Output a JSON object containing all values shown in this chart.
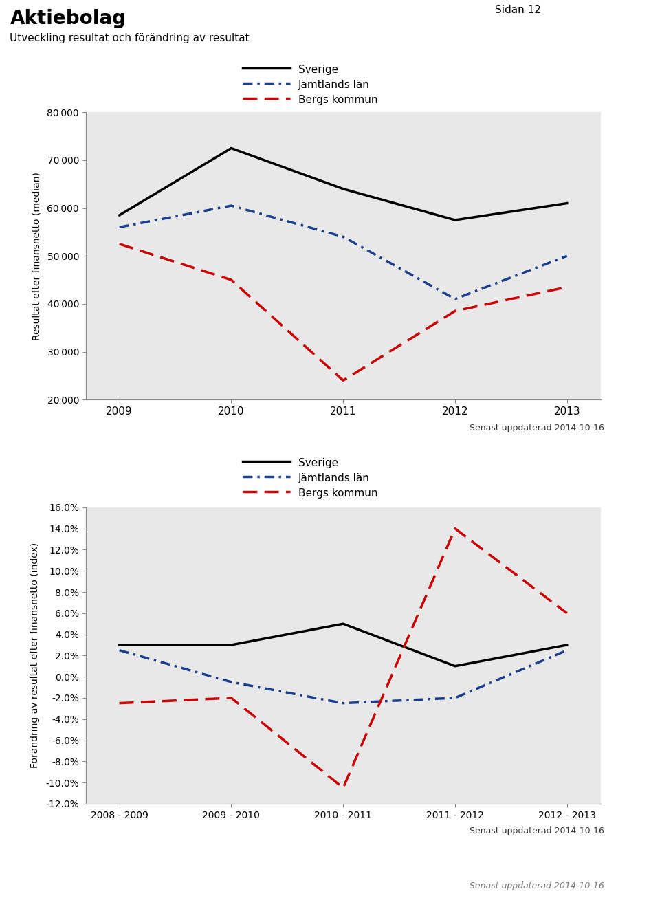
{
  "title": "Aktiebolag",
  "subtitle": "Utveckling resultat och förändring av resultat",
  "page": "Sidan 12",
  "updated": "Senast uppdaterad 2014-10-16",
  "chart1": {
    "ylabel": "Resultat efter finansnetto (median)",
    "years": [
      2009,
      2010,
      2011,
      2012,
      2013
    ],
    "sverige": [
      58500,
      72500,
      64000,
      57500,
      61000
    ],
    "jamtland": [
      56000,
      60500,
      54000,
      41000,
      50000
    ],
    "bergs": [
      52500,
      45000,
      24000,
      38500,
      43500
    ],
    "ylim": [
      20000,
      80000
    ],
    "yticks": [
      20000,
      30000,
      40000,
      50000,
      60000,
      70000,
      80000
    ]
  },
  "chart2": {
    "ylabel": "Förändring av resultat efter finansnetto (index)",
    "periods": [
      "2008 - 2009",
      "2009 - 2010",
      "2010 - 2011",
      "2011 - 2012",
      "2012 - 2013"
    ],
    "sverige": [
      0.03,
      0.03,
      0.05,
      0.01,
      0.03
    ],
    "jamtland": [
      0.025,
      -0.005,
      -0.025,
      -0.02,
      0.025
    ],
    "bergs": [
      -0.025,
      -0.02,
      -0.105,
      0.14,
      0.06
    ],
    "ylim": [
      -0.12,
      0.16
    ],
    "yticks": [
      -0.12,
      -0.1,
      -0.08,
      -0.06,
      -0.04,
      -0.02,
      0.0,
      0.02,
      0.04,
      0.06,
      0.08,
      0.1,
      0.12,
      0.14,
      0.16
    ]
  },
  "colors": {
    "sverige": "#000000",
    "jamtland": "#1a3f8f",
    "bergs": "#cc0000"
  },
  "legend_labels": [
    "Sverige",
    "Jämtlands län",
    "Bergs kommun"
  ],
  "bg_color": "#e8e8e8",
  "fig_bg": "#ffffff"
}
